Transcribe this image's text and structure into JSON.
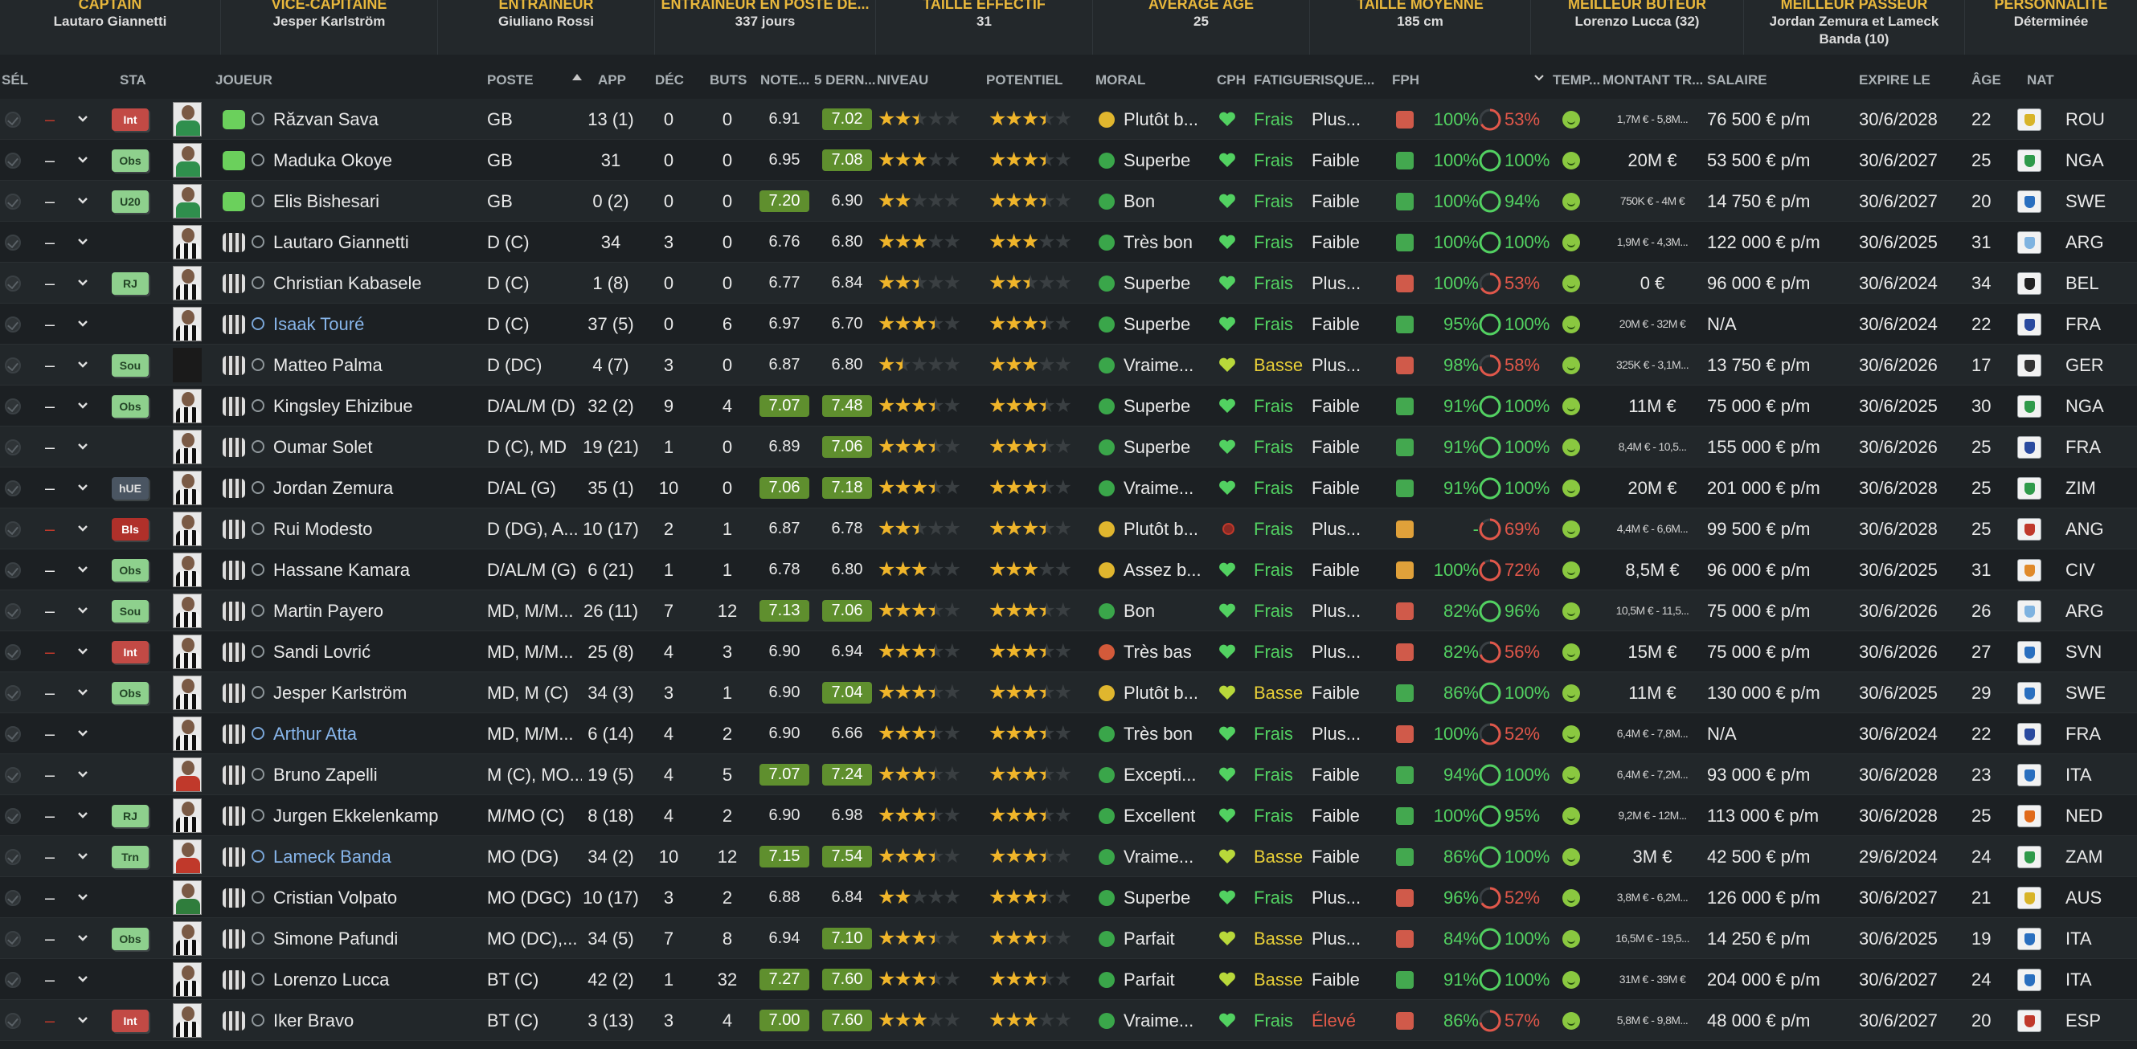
{
  "summary": [
    {
      "label": "CAPTAIN",
      "value": "Lautaro Giannetti"
    },
    {
      "label": "VICE-CAPITAINE",
      "value": "Jesper Karlström"
    },
    {
      "label": "ENTRAINEUR",
      "value": "Giuliano Rossi"
    },
    {
      "label": "ENTRAINEUR EN POSTE DE...",
      "value": "337 jours"
    },
    {
      "label": "TAILLE EFFECTIF",
      "value": "31"
    },
    {
      "label": "AVERAGE AGE",
      "value": "25"
    },
    {
      "label": "TAILLE MOYENNE",
      "value": "185 cm"
    },
    {
      "label": "MEILLEUR BUTEUR",
      "value": "Lorenzo Lucca (32)"
    },
    {
      "label": "MEILLEUR PASSEUR",
      "value": "Jordan Zemura et Lameck Banda (10)"
    },
    {
      "label": "PERSONNALITE",
      "value": "Déterminée"
    }
  ],
  "columns": {
    "sel": "SÉL",
    "sta": "STA",
    "joueur": "JOUEUR",
    "poste": "POSTE",
    "app": "APP",
    "dec": "DÉC",
    "buts": "BUTS",
    "note": "NOTE...",
    "der5": "5 DERN...",
    "niveau": "NIVEAU",
    "potentiel": "POTENTIEL",
    "moral": "MORAL",
    "cph": "CPH",
    "fatigue": "FATIGUE",
    "risque": "RISQUE...",
    "fph": "FPH",
    "temp": "TEMP...",
    "montant": "MONTANT TR...",
    "salaire": "SALAIRE",
    "expire": "EXPIRE LE",
    "age": "ÂGE",
    "nat": "NAT"
  },
  "players": [
    {
      "dash": "–",
      "sta": "Int",
      "name": "Răzvan Sava",
      "poste": "GB",
      "app": "13 (1)",
      "dec": "0",
      "buts": "0",
      "note": "6.91",
      "der5": "7.02",
      "niv": 2.5,
      "pot": 3.5,
      "moral": "Plutôt b...",
      "fatigue": "Frais",
      "risque": "Plus...",
      "pct": "100%",
      "cond": "53%",
      "montant": "1,7M € - 5,8M...",
      "salaire": "76 500 € p/m",
      "expire": "30/6/2028",
      "age": "22",
      "nat": "ROU"
    },
    {
      "dash": "–",
      "sta": "Obs",
      "name": "Maduka Okoye",
      "poste": "GB",
      "app": "31",
      "dec": "0",
      "buts": "0",
      "note": "6.95",
      "der5": "7.08",
      "niv": 3,
      "pot": 3.5,
      "moral": "Superbe",
      "fatigue": "Frais",
      "risque": "Faible",
      "pct": "100%",
      "cond": "100%",
      "montant": "20M €",
      "salaire": "53 500 € p/m",
      "expire": "30/6/2027",
      "age": "25",
      "nat": "NGA"
    },
    {
      "dash": "–",
      "sta": "U20",
      "name": "Elis Bishesari",
      "poste": "GB",
      "app": "0 (2)",
      "dec": "0",
      "buts": "0",
      "note": "7.20",
      "der5": "6.90",
      "niv": 2,
      "pot": 3.5,
      "moral": "Bon",
      "fatigue": "Frais",
      "risque": "Faible",
      "pct": "100%",
      "cond": "94%",
      "montant": "750K € - 4M €",
      "salaire": "14 750 € p/m",
      "expire": "30/6/2027",
      "age": "20",
      "nat": "SWE"
    },
    {
      "dash": "–",
      "sta": "",
      "name": "Lautaro Giannetti",
      "poste": "D (C)",
      "app": "34",
      "dec": "3",
      "buts": "0",
      "note": "6.76",
      "der5": "6.80",
      "niv": 3,
      "pot": 3,
      "moral": "Très bon",
      "fatigue": "Frais",
      "risque": "Faible",
      "pct": "100%",
      "cond": "100%",
      "montant": "1,9M € - 4,3M...",
      "salaire": "122 000 € p/m",
      "expire": "30/6/2025",
      "age": "31",
      "nat": "ARG"
    },
    {
      "dash": "–",
      "sta": "RJ",
      "name": "Christian Kabasele",
      "poste": "D (C)",
      "app": "1 (8)",
      "dec": "0",
      "buts": "0",
      "note": "6.77",
      "der5": "6.84",
      "niv": 2.5,
      "pot": 2.5,
      "moral": "Superbe",
      "fatigue": "Frais",
      "risque": "Plus...",
      "pct": "100%",
      "cond": "53%",
      "montant": "0 €",
      "salaire": "96 000 € p/m",
      "expire": "30/6/2024",
      "age": "34",
      "nat": "BEL"
    },
    {
      "dash": "–",
      "sta": "",
      "name": "Isaak Touré",
      "poste": "D (C)",
      "app": "37 (5)",
      "dec": "0",
      "buts": "6",
      "note": "6.97",
      "der5": "6.70",
      "niv": 3.5,
      "pot": 3.5,
      "moral": "Superbe",
      "fatigue": "Frais",
      "risque": "Faible",
      "pct": "95%",
      "cond": "100%",
      "montant": "20M € - 32M €",
      "salaire": "N/A",
      "expire": "30/6/2024",
      "age": "22",
      "nat": "FRA"
    },
    {
      "dash": "–",
      "sta": "Sou",
      "name": "Matteo Palma",
      "poste": "D (DC)",
      "app": "4 (7)",
      "dec": "3",
      "buts": "0",
      "note": "6.87",
      "der5": "6.80",
      "niv": 1.5,
      "pot": 3,
      "moral": "Vraime...",
      "fatigue": "Basse",
      "risque": "Plus...",
      "pct": "98%",
      "cond": "58%",
      "montant": "325K € - 3,1M...",
      "salaire": "13 750 € p/m",
      "expire": "30/6/2026",
      "age": "17",
      "nat": "GER"
    },
    {
      "dash": "–",
      "sta": "Obs",
      "name": "Kingsley Ehizibue",
      "poste": "D/AL/M (D)",
      "app": "32 (2)",
      "dec": "9",
      "buts": "4",
      "note": "7.07",
      "der5": "7.48",
      "niv": 3.5,
      "pot": 3.5,
      "moral": "Superbe",
      "fatigue": "Frais",
      "risque": "Faible",
      "pct": "91%",
      "cond": "100%",
      "montant": "11M €",
      "salaire": "75 000 € p/m",
      "expire": "30/6/2025",
      "age": "30",
      "nat": "NGA"
    },
    {
      "dash": "–",
      "sta": "",
      "name": "Oumar Solet",
      "poste": "D (C), MD",
      "app": "19 (21)",
      "dec": "1",
      "buts": "0",
      "note": "6.89",
      "der5": "7.06",
      "niv": 3.5,
      "pot": 3.5,
      "moral": "Superbe",
      "fatigue": "Frais",
      "risque": "Faible",
      "pct": "91%",
      "cond": "100%",
      "montant": "8,4M € - 10,5...",
      "salaire": "155 000 € p/m",
      "expire": "30/6/2026",
      "age": "25",
      "nat": "FRA"
    },
    {
      "dash": "–",
      "sta": "hUE",
      "name": "Jordan Zemura",
      "poste": "D/AL (G)",
      "app": "35 (1)",
      "dec": "10",
      "buts": "0",
      "note": "7.06",
      "der5": "7.18",
      "niv": 3.5,
      "pot": 3.5,
      "moral": "Vraime...",
      "fatigue": "Frais",
      "risque": "Faible",
      "pct": "91%",
      "cond": "100%",
      "montant": "20M €",
      "salaire": "201 000 € p/m",
      "expire": "30/6/2028",
      "age": "25",
      "nat": "ZIM"
    },
    {
      "dash": "–",
      "sta": "Bls",
      "name": "Rui Modesto",
      "poste": "D (DG), A...",
      "app": "10 (17)",
      "dec": "2",
      "buts": "1",
      "note": "6.87",
      "der5": "6.78",
      "niv": 2.5,
      "pot": 3.5,
      "moral": "Plutôt b...",
      "fatigue": "Frais",
      "risque": "Plus...",
      "pct": "-",
      "cond": "69%",
      "montant": "4,4M € - 6,6M...",
      "salaire": "99 500 € p/m",
      "expire": "30/6/2028",
      "age": "25",
      "nat": "ANG"
    },
    {
      "dash": "–",
      "sta": "Obs",
      "name": "Hassane Kamara",
      "poste": "D/AL/M (G)",
      "app": "6 (21)",
      "dec": "1",
      "buts": "1",
      "note": "6.78",
      "der5": "6.80",
      "niv": 3,
      "pot": 3,
      "moral": "Assez b...",
      "fatigue": "Frais",
      "risque": "Faible",
      "pct": "100%",
      "cond": "72%",
      "montant": "8,5M €",
      "salaire": "96 000 € p/m",
      "expire": "30/6/2025",
      "age": "31",
      "nat": "CIV"
    },
    {
      "dash": "–",
      "sta": "Sou",
      "name": "Martin Payero",
      "poste": "MD, M/M...",
      "app": "26 (11)",
      "dec": "7",
      "buts": "12",
      "note": "7.13",
      "der5": "7.06",
      "niv": 3.5,
      "pot": 3.5,
      "moral": "Bon",
      "fatigue": "Frais",
      "risque": "Plus...",
      "pct": "82%",
      "cond": "96%",
      "montant": "10,5M € - 11,5...",
      "salaire": "75 000 € p/m",
      "expire": "30/6/2026",
      "age": "26",
      "nat": "ARG"
    },
    {
      "dash": "–",
      "sta": "Int",
      "name": "Sandi Lovrić",
      "poste": "MD, M/M...",
      "app": "25 (8)",
      "dec": "4",
      "buts": "3",
      "note": "6.90",
      "der5": "6.94",
      "niv": 3.5,
      "pot": 3.5,
      "moral": "Très bas",
      "fatigue": "Frais",
      "risque": "Plus...",
      "pct": "82%",
      "cond": "56%",
      "montant": "15M €",
      "salaire": "75 000 € p/m",
      "expire": "30/6/2026",
      "age": "27",
      "nat": "SVN"
    },
    {
      "dash": "–",
      "sta": "Obs",
      "name": "Jesper Karlström",
      "poste": "MD, M (C)",
      "app": "34 (3)",
      "dec": "3",
      "buts": "1",
      "note": "6.90",
      "der5": "7.04",
      "niv": 3.5,
      "pot": 3.5,
      "moral": "Plutôt b...",
      "fatigue": "Basse",
      "risque": "Faible",
      "pct": "86%",
      "cond": "100%",
      "montant": "11M €",
      "salaire": "130 000 € p/m",
      "expire": "30/6/2025",
      "age": "29",
      "nat": "SWE"
    },
    {
      "dash": "–",
      "sta": "",
      "name": "Arthur Atta",
      "poste": "MD, M/M...",
      "app": "6 (14)",
      "dec": "4",
      "buts": "2",
      "note": "6.90",
      "der5": "6.66",
      "niv": 3.5,
      "pot": 3.5,
      "moral": "Très bon",
      "fatigue": "Frais",
      "risque": "Plus...",
      "pct": "100%",
      "cond": "52%",
      "montant": "6,4M € - 7,8M...",
      "salaire": "N/A",
      "expire": "30/6/2024",
      "age": "22",
      "nat": "FRA"
    },
    {
      "dash": "–",
      "sta": "",
      "name": "Bruno Zapelli",
      "poste": "M (C), MO...",
      "app": "19 (5)",
      "dec": "4",
      "buts": "5",
      "note": "7.07",
      "der5": "7.24",
      "niv": 3.5,
      "pot": 3.5,
      "moral": "Excepti...",
      "fatigue": "Frais",
      "risque": "Faible",
      "pct": "94%",
      "cond": "100%",
      "montant": "6,4M € - 7,2M...",
      "salaire": "93 000 € p/m",
      "expire": "30/6/2028",
      "age": "23",
      "nat": "ITA"
    },
    {
      "dash": "–",
      "sta": "RJ",
      "name": "Jurgen Ekkelenkamp",
      "poste": "M/MO (C)",
      "app": "8 (18)",
      "dec": "4",
      "buts": "2",
      "note": "6.90",
      "der5": "6.98",
      "niv": 3.5,
      "pot": 3.5,
      "moral": "Excellent",
      "fatigue": "Frais",
      "risque": "Faible",
      "pct": "100%",
      "cond": "95%",
      "montant": "9,2M € - 12M...",
      "salaire": "113 000 € p/m",
      "expire": "30/6/2028",
      "age": "25",
      "nat": "NED"
    },
    {
      "dash": "–",
      "sta": "Trn",
      "name": "Lameck Banda",
      "poste": "MO (DG)",
      "app": "34 (2)",
      "dec": "10",
      "buts": "12",
      "note": "7.15",
      "der5": "7.54",
      "niv": 3.5,
      "pot": 3.5,
      "moral": "Vraime...",
      "fatigue": "Basse",
      "risque": "Faible",
      "pct": "86%",
      "cond": "100%",
      "montant": "3M €",
      "salaire": "42 500 € p/m",
      "expire": "29/6/2024",
      "age": "24",
      "nat": "ZAM"
    },
    {
      "dash": "–",
      "sta": "",
      "name": "Cristian Volpato",
      "poste": "MO (DGC)",
      "app": "10 (17)",
      "dec": "3",
      "buts": "2",
      "note": "6.88",
      "der5": "6.84",
      "niv": 2,
      "pot": 3.5,
      "moral": "Superbe",
      "fatigue": "Frais",
      "risque": "Plus...",
      "pct": "96%",
      "cond": "52%",
      "montant": "3,8M € - 6,2M...",
      "salaire": "126 000 € p/m",
      "expire": "30/6/2027",
      "age": "21",
      "nat": "AUS"
    },
    {
      "dash": "–",
      "sta": "Obs",
      "name": "Simone Pafundi",
      "poste": "MO (DC),...",
      "app": "34 (5)",
      "dec": "7",
      "buts": "8",
      "note": "6.94",
      "der5": "7.10",
      "niv": 3.5,
      "pot": 3.5,
      "moral": "Parfait",
      "fatigue": "Basse",
      "risque": "Plus...",
      "pct": "84%",
      "cond": "100%",
      "montant": "16,5M € - 19,5...",
      "salaire": "14 250 € p/m",
      "expire": "30/6/2025",
      "age": "19",
      "nat": "ITA"
    },
    {
      "dash": "–",
      "sta": "",
      "name": "Lorenzo Lucca",
      "poste": "BT (C)",
      "app": "42 (2)",
      "dec": "1",
      "buts": "32",
      "note": "7.27",
      "der5": "7.60",
      "niv": 3.5,
      "pot": 3.5,
      "moral": "Parfait",
      "fatigue": "Basse",
      "risque": "Faible",
      "pct": "91%",
      "cond": "100%",
      "montant": "31M € - 39M €",
      "salaire": "204 000 € p/m",
      "expire": "30/6/2027",
      "age": "24",
      "nat": "ITA"
    },
    {
      "dash": "–",
      "sta": "Int",
      "name": "Iker Bravo",
      "poste": "BT (C)",
      "app": "3 (13)",
      "dec": "3",
      "buts": "4",
      "note": "7.00",
      "der5": "7.60",
      "niv": 3,
      "pot": 3,
      "moral": "Vraime...",
      "fatigue": "Frais",
      "risque": "Élevé",
      "pct": "86%",
      "cond": "57%",
      "montant": "5,8M € - 9,8M...",
      "salaire": "48 000 € p/m",
      "expire": "30/6/2027",
      "age": "20",
      "nat": "ESP"
    }
  ],
  "colors": {
    "accent": "#e8b73c",
    "good": "#52d161",
    "warn": "#e8cf38",
    "bad": "#e0574a",
    "highlight": "#5f8f2e"
  }
}
